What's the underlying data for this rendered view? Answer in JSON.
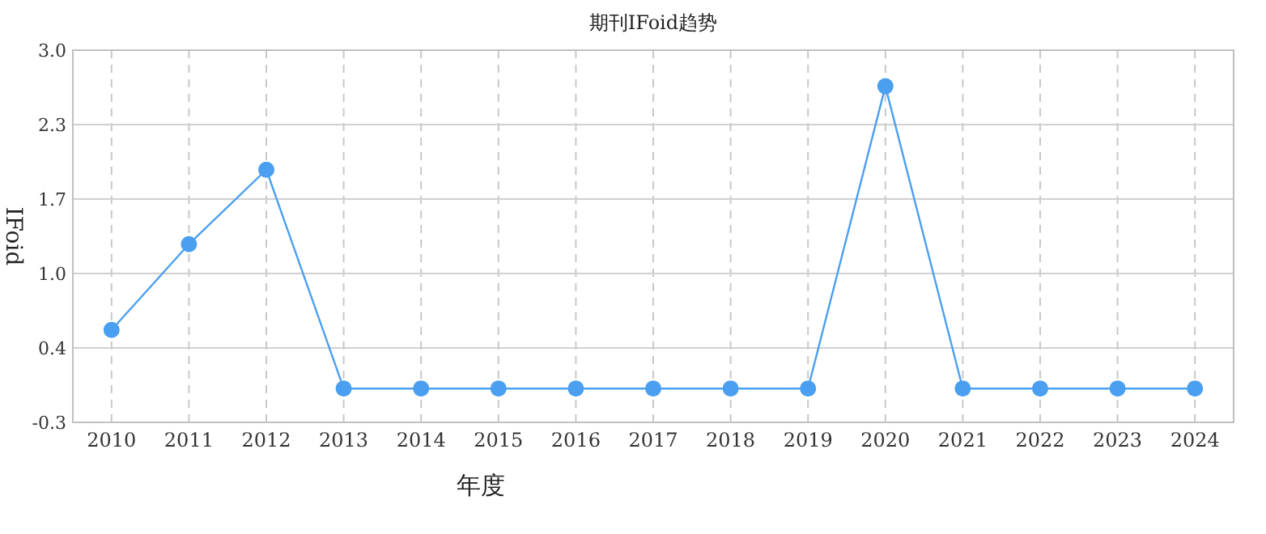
{
  "chart_data": {
    "type": "line",
    "title": "期刊IFoid趋势",
    "xlabel": "年度",
    "ylabel": "IFoid",
    "categories": [
      "2010",
      "2011",
      "2012",
      "2013",
      "2014",
      "2015",
      "2016",
      "2017",
      "2018",
      "2019",
      "2020",
      "2021",
      "2022",
      "2023",
      "2024"
    ],
    "series": [
      {
        "color": "#4a9ff0",
        "values": [
          0.52,
          1.28,
          1.94,
          0,
          0,
          0,
          0,
          0,
          0,
          0,
          2.68,
          0,
          0,
          0,
          0
        ]
      }
    ],
    "ylim": [
      -0.3,
      3.0
    ],
    "yticks": [
      -0.3,
      {
        "value": 0.36,
        "label": "0.4"
      },
      {
        "value": 1.02,
        "label": "1.0"
      },
      {
        "value": 1.68,
        "label": "1.7"
      },
      {
        "value": 2.34,
        "label": "2.3"
      },
      {
        "value": 3.0,
        "label": "3.0"
      }
    ],
    "grid": true,
    "marker": "circle",
    "line_style": "solid"
  }
}
